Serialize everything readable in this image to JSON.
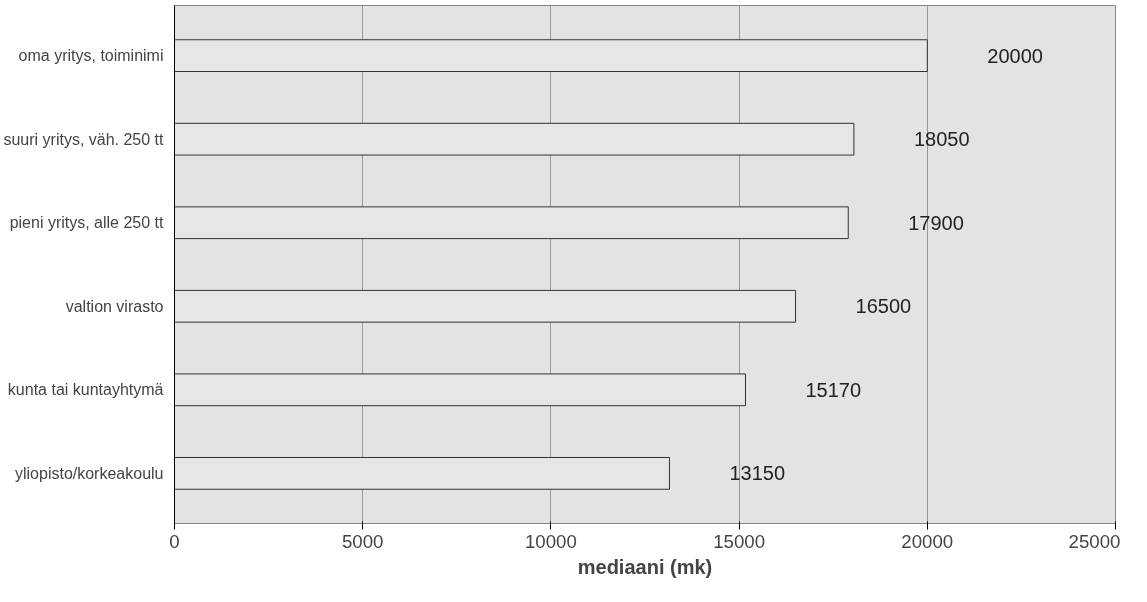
{
  "chart_data": {
    "type": "bar",
    "orientation": "horizontal",
    "xlabel": "mediaani (mk)",
    "categories": [
      "oma yritys, toiminimi",
      "suuri yritys, väh. 250 tt",
      "pieni yritys, alle 250 tt",
      "valtion virasto",
      "kunta tai kuntayhtymä",
      "yliopisto/korkeakoulu"
    ],
    "values": [
      20000,
      18050,
      17900,
      16500,
      15170,
      13150
    ],
    "color": "#e6e6e6",
    "xlim": [
      0,
      25000
    ],
    "xticks": [
      0,
      5000,
      10000,
      15000,
      20000,
      25000
    ],
    "grid": "x",
    "data_labels": true
  }
}
